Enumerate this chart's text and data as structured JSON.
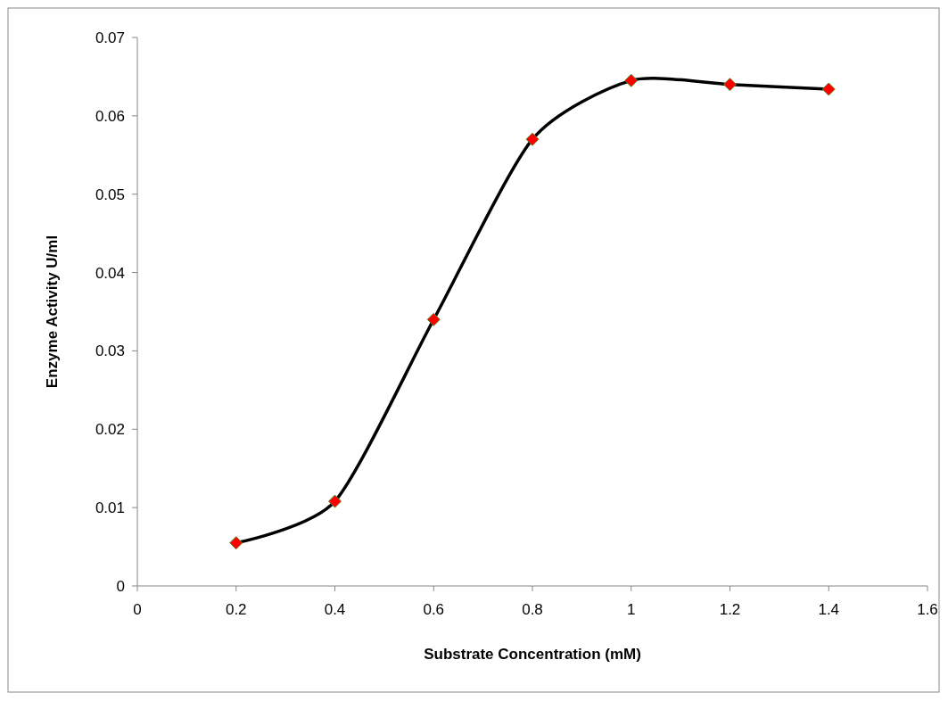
{
  "chart_data": {
    "type": "line",
    "xlabel": "Substrate  Concentration (mM)",
    "ylabel": "Enzyme Activity U/ml",
    "x": [
      0.2,
      0.4,
      0.6,
      0.8,
      1.0,
      1.2,
      1.4
    ],
    "series": [
      {
        "color": "#000000",
        "values": [
          0.0055,
          0.0108,
          0.034,
          0.057,
          0.0645,
          0.064,
          0.0634
        ]
      }
    ],
    "xlim": [
      0,
      1.6
    ],
    "xticks": [
      0,
      0.2,
      0.4,
      0.6,
      0.8,
      1,
      1.2,
      1.4,
      1.6
    ],
    "ylim": [
      0,
      0.07
    ],
    "yticks": [
      0,
      0.01,
      0.02,
      0.03,
      0.04,
      0.05,
      0.06,
      0.07
    ],
    "grid": false,
    "marker": "diamond",
    "line_style": "solid"
  }
}
